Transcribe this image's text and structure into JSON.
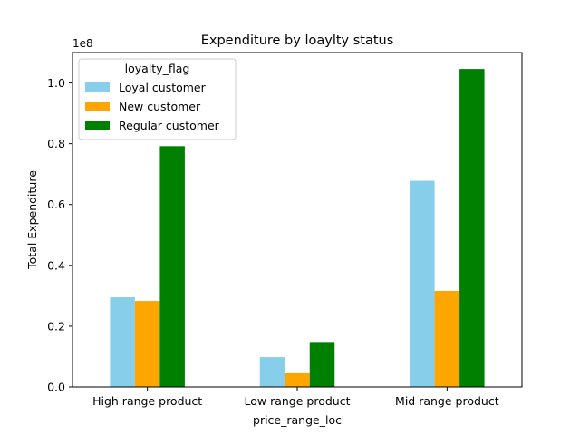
{
  "chart_data": {
    "type": "bar",
    "title": "Expenditure by loaylty status",
    "xlabel": "price_range_loc",
    "ylabel": "Total Expenditure",
    "scale_label": "1e8",
    "categories": [
      "High range product",
      "Low range product",
      "Mid range product"
    ],
    "series": [
      {
        "name": "Loyal customer",
        "color": "#87CEEB",
        "values": [
          0.295,
          0.098,
          0.678
        ]
      },
      {
        "name": "New customer",
        "color": "#FFA500",
        "values": [
          0.283,
          0.045,
          0.316
        ]
      },
      {
        "name": "Regular customer",
        "color": "#008000",
        "values": [
          0.792,
          0.148,
          1.046
        ]
      }
    ],
    "yticks": [
      "0.0",
      "0.2",
      "0.4",
      "0.6",
      "0.8",
      "1.0"
    ],
    "ylim": [
      0,
      1.1
    ],
    "legend": {
      "title": "loyalty_flag",
      "position": "top-left"
    },
    "grid": false
  }
}
